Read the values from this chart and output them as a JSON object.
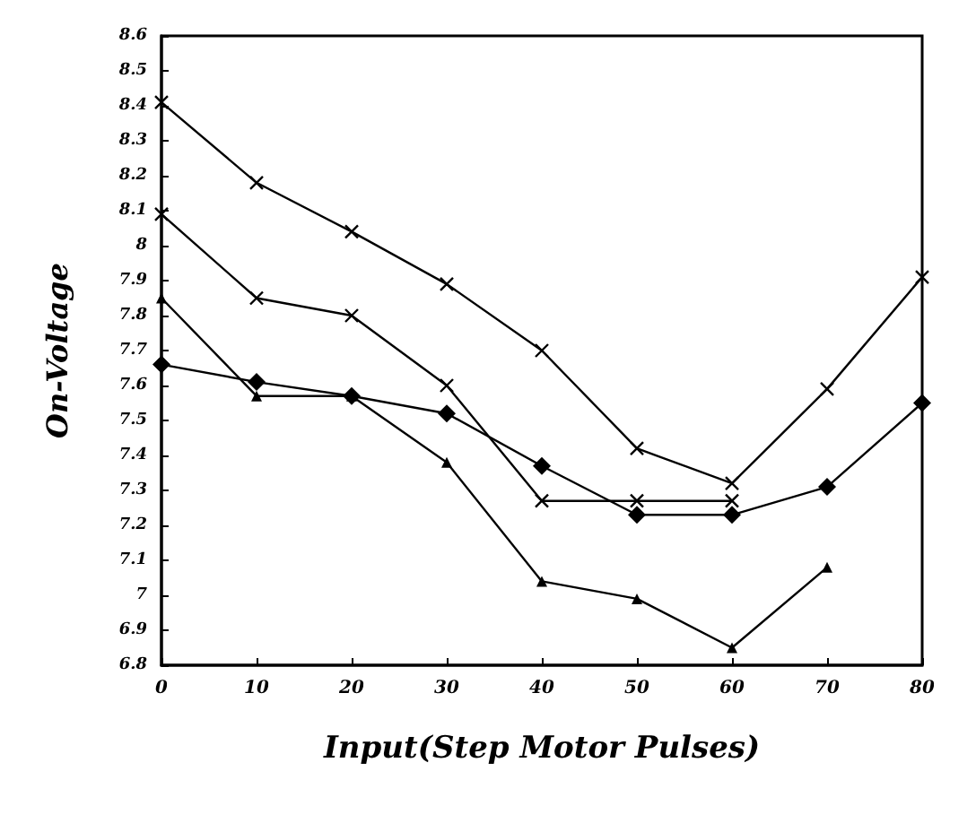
{
  "chart_data": {
    "type": "line",
    "xlabel": "Input(Step Motor Pulses)",
    "ylabel": "On-Voltage",
    "xlim": [
      0,
      80
    ],
    "xticks": [
      0,
      10,
      20,
      30,
      40,
      50,
      60,
      70,
      80
    ],
    "ylim": [
      6.8,
      8.6
    ],
    "yticks": [
      6.8,
      6.9,
      7,
      7.1,
      7.2,
      7.3,
      7.4,
      7.5,
      7.6,
      7.7,
      7.8,
      7.9,
      8,
      8.1,
      8.2,
      8.3,
      8.4,
      8.5,
      8.6
    ],
    "grid": false,
    "line_style": "solid",
    "series": [
      {
        "color": "#000000",
        "marker": "cross",
        "x": [
          0,
          10,
          20,
          30,
          40,
          50,
          60,
          70,
          80
        ],
        "values": [
          8.41,
          8.18,
          8.04,
          7.89,
          7.7,
          7.42,
          7.32,
          7.59,
          7.91
        ]
      },
      {
        "color": "#000000",
        "marker": "cross",
        "x": [
          0,
          10,
          20,
          30,
          40,
          50,
          60
        ],
        "values": [
          8.09,
          7.85,
          7.8,
          7.6,
          7.27,
          7.27,
          7.27
        ]
      },
      {
        "color": "#000000",
        "marker": "triangle",
        "x": [
          0,
          10,
          20,
          30,
          40,
          50,
          60,
          70
        ],
        "values": [
          7.85,
          7.57,
          7.57,
          7.38,
          7.04,
          6.99,
          6.85,
          7.08
        ]
      },
      {
        "color": "#000000",
        "marker": "diamond",
        "x": [
          0,
          10,
          20,
          30,
          40,
          50,
          60,
          70,
          80
        ],
        "values": [
          7.66,
          7.61,
          7.57,
          7.52,
          7.37,
          7.23,
          7.23,
          7.31,
          7.55
        ]
      }
    ]
  }
}
